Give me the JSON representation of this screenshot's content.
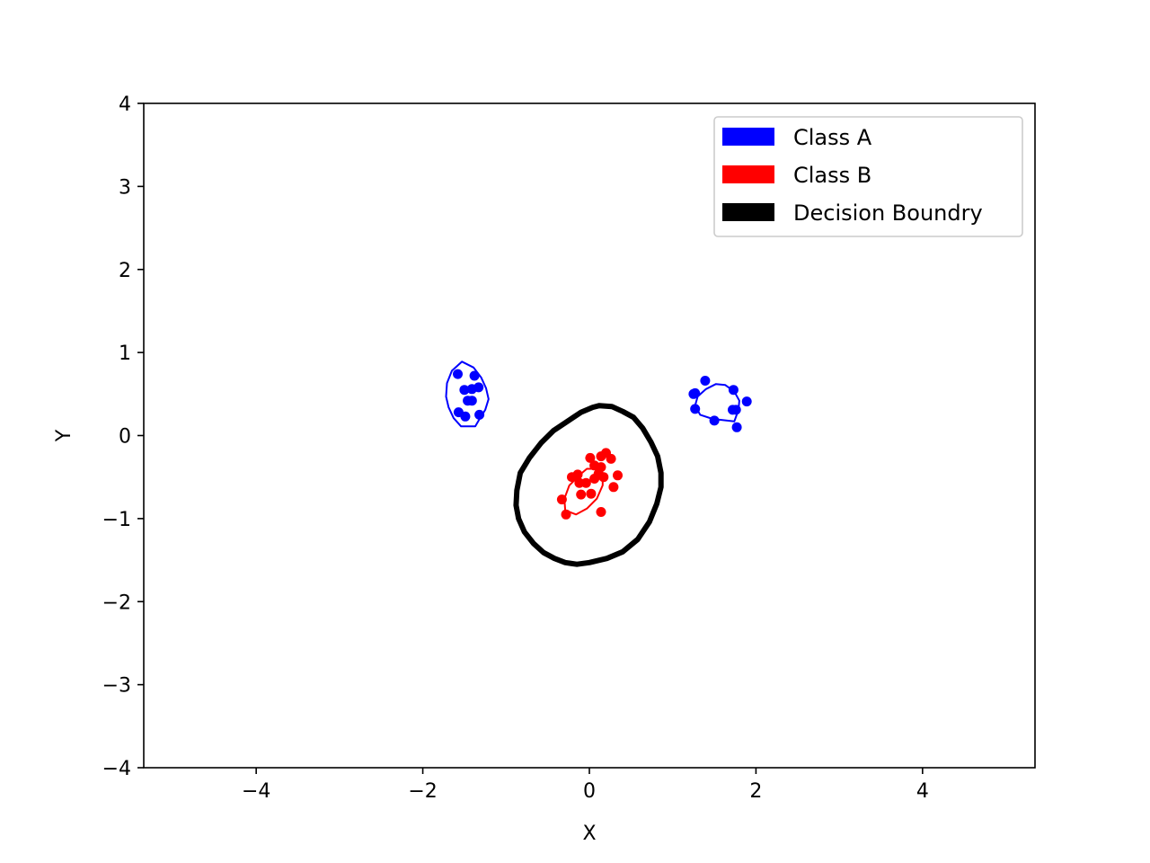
{
  "chart_data": {
    "type": "scatter",
    "title": "",
    "xlabel": "X",
    "ylabel": "Y",
    "xlim": [
      -5.35,
      5.35
    ],
    "ylim": [
      -4,
      4
    ],
    "xticks": [
      {
        "value": -4,
        "label": "−4"
      },
      {
        "value": -2,
        "label": "−2"
      },
      {
        "value": 0,
        "label": "0"
      },
      {
        "value": 2,
        "label": "2"
      },
      {
        "value": 4,
        "label": "4"
      }
    ],
    "yticks": [
      {
        "value": -4,
        "label": "−4"
      },
      {
        "value": -3,
        "label": "−3"
      },
      {
        "value": -2,
        "label": "−2"
      },
      {
        "value": -1,
        "label": "−1"
      },
      {
        "value": 0,
        "label": "0"
      },
      {
        "value": 1,
        "label": "1"
      },
      {
        "value": 2,
        "label": "2"
      },
      {
        "value": 3,
        "label": "3"
      },
      {
        "value": 4,
        "label": "4"
      }
    ],
    "grid": false,
    "legend_position": "top-right",
    "series": [
      {
        "name": "Class A",
        "color": "#0000ff",
        "points": [
          [
            -1.58,
            0.74
          ],
          [
            -1.38,
            0.72
          ],
          [
            -1.5,
            0.55
          ],
          [
            -1.41,
            0.56
          ],
          [
            -1.33,
            0.58
          ],
          [
            -1.46,
            0.42
          ],
          [
            -1.41,
            0.42
          ],
          [
            -1.57,
            0.28
          ],
          [
            -1.49,
            0.23
          ],
          [
            -1.32,
            0.25
          ],
          [
            1.39,
            0.66
          ],
          [
            1.73,
            0.55
          ],
          [
            1.25,
            0.5
          ],
          [
            1.27,
            0.51
          ],
          [
            1.89,
            0.41
          ],
          [
            1.27,
            0.32
          ],
          [
            1.72,
            0.31
          ],
          [
            1.76,
            0.31
          ],
          [
            1.5,
            0.18
          ],
          [
            1.77,
            0.1
          ]
        ],
        "contours": [
          [
            [
              -1.53,
              0.89
            ],
            [
              -1.39,
              0.82
            ],
            [
              -1.3,
              0.7
            ],
            [
              -1.24,
              0.57
            ],
            [
              -1.21,
              0.44
            ],
            [
              -1.25,
              0.31
            ],
            [
              -1.33,
              0.18
            ],
            [
              -1.37,
              0.11
            ],
            [
              -1.54,
              0.11
            ],
            [
              -1.63,
              0.21
            ],
            [
              -1.69,
              0.34
            ],
            [
              -1.72,
              0.47
            ],
            [
              -1.71,
              0.63
            ],
            [
              -1.65,
              0.78
            ],
            [
              -1.53,
              0.89
            ]
          ],
          [
            [
              1.52,
              0.62
            ],
            [
              1.63,
              0.61
            ],
            [
              1.74,
              0.53
            ],
            [
              1.8,
              0.42
            ],
            [
              1.79,
              0.31
            ],
            [
              1.74,
              0.17
            ],
            [
              1.48,
              0.2
            ],
            [
              1.33,
              0.25
            ],
            [
              1.27,
              0.36
            ],
            [
              1.3,
              0.47
            ],
            [
              1.4,
              0.56
            ],
            [
              1.52,
              0.62
            ]
          ]
        ]
      },
      {
        "name": "Class B",
        "color": "#ff0000",
        "points": [
          [
            0.2,
            -0.21
          ],
          [
            0.01,
            -0.27
          ],
          [
            0.26,
            -0.28
          ],
          [
            0.14,
            -0.25
          ],
          [
            0.06,
            -0.36
          ],
          [
            0.14,
            -0.38
          ],
          [
            0.11,
            -0.46
          ],
          [
            0.17,
            -0.5
          ],
          [
            -0.14,
            -0.47
          ],
          [
            -0.21,
            -0.5
          ],
          [
            0.06,
            -0.52
          ],
          [
            0.34,
            -0.48
          ],
          [
            -0.12,
            -0.57
          ],
          [
            -0.04,
            -0.57
          ],
          [
            0.29,
            -0.62
          ],
          [
            -0.1,
            -0.71
          ],
          [
            0.02,
            -0.7
          ],
          [
            -0.33,
            -0.77
          ],
          [
            0.14,
            -0.92
          ],
          [
            -0.28,
            -0.95
          ]
        ],
        "contours": [
          [
            [
              0.08,
              -0.4
            ],
            [
              0.16,
              -0.47
            ],
            [
              0.16,
              -0.6
            ],
            [
              0.09,
              -0.76
            ],
            [
              -0.03,
              -0.88
            ],
            [
              -0.16,
              -0.95
            ],
            [
              -0.29,
              -0.9
            ],
            [
              -0.3,
              -0.76
            ],
            [
              -0.24,
              -0.6
            ],
            [
              -0.1,
              -0.46
            ],
            [
              -0.03,
              -0.4
            ],
            [
              0.08,
              -0.4
            ]
          ]
        ]
      },
      {
        "name": "Decision Boundry",
        "color": "#000000",
        "contours": [
          [
            [
              0.12,
              0.36
            ],
            [
              0.27,
              0.35
            ],
            [
              0.4,
              0.29
            ],
            [
              0.53,
              0.22
            ],
            [
              0.64,
              0.09
            ],
            [
              0.74,
              -0.08
            ],
            [
              0.82,
              -0.25
            ],
            [
              0.86,
              -0.45
            ],
            [
              0.86,
              -0.62
            ],
            [
              0.81,
              -0.82
            ],
            [
              0.72,
              -1.04
            ],
            [
              0.58,
              -1.25
            ],
            [
              0.4,
              -1.4
            ],
            [
              0.21,
              -1.48
            ],
            [
              0.0,
              -1.53
            ],
            [
              -0.15,
              -1.55
            ],
            [
              -0.29,
              -1.53
            ],
            [
              -0.42,
              -1.48
            ],
            [
              -0.55,
              -1.41
            ],
            [
              -0.67,
              -1.3
            ],
            [
              -0.78,
              -1.16
            ],
            [
              -0.85,
              -1.0
            ],
            [
              -0.88,
              -0.84
            ],
            [
              -0.87,
              -0.66
            ],
            [
              -0.83,
              -0.45
            ],
            [
              -0.72,
              -0.27
            ],
            [
              -0.58,
              -0.09
            ],
            [
              -0.43,
              0.06
            ],
            [
              -0.28,
              0.16
            ],
            [
              -0.1,
              0.28
            ],
            [
              0.04,
              0.34
            ],
            [
              0.12,
              0.36
            ]
          ]
        ]
      }
    ]
  }
}
